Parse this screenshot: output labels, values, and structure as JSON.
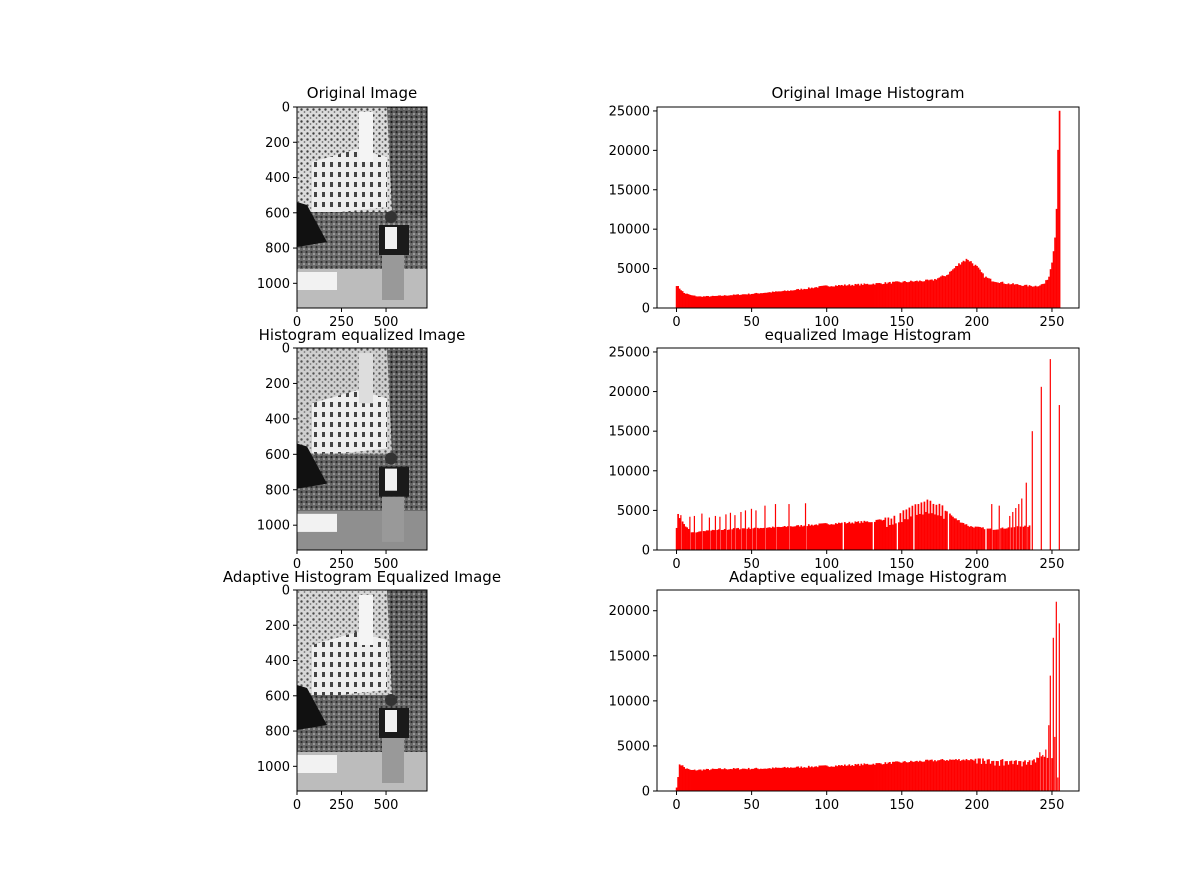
{
  "chart_data": [
    {
      "type": "image",
      "title": "Original Image",
      "variant": "original",
      "xticks": [
        0,
        250,
        500
      ],
      "yticks": [
        0,
        200,
        400,
        600,
        800,
        1000
      ],
      "xlim": [
        0,
        730
      ],
      "ylim": [
        1140,
        0
      ]
    },
    {
      "type": "bar",
      "title": "Original Image Histogram",
      "color": "#ff0000",
      "xlim": [
        -13,
        268
      ],
      "ylim": [
        0,
        25500
      ],
      "xticks": [
        0,
        50,
        100,
        150,
        200,
        250
      ],
      "yticks": [
        0,
        5000,
        10000,
        15000,
        20000,
        25000
      ],
      "profile": "original",
      "keypoints": [
        [
          0,
          2900
        ],
        [
          2,
          2500
        ],
        [
          5,
          1900
        ],
        [
          10,
          1600
        ],
        [
          15,
          1450
        ],
        [
          25,
          1500
        ],
        [
          50,
          1800
        ],
        [
          75,
          2200
        ],
        [
          100,
          2800
        ],
        [
          125,
          3000
        ],
        [
          150,
          3300
        ],
        [
          170,
          3500
        ],
        [
          180,
          4200
        ],
        [
          190,
          5900
        ],
        [
          194,
          6200
        ],
        [
          200,
          5200
        ],
        [
          205,
          4000
        ],
        [
          210,
          3500
        ],
        [
          220,
          3100
        ],
        [
          235,
          2800
        ],
        [
          240,
          2800
        ],
        [
          245,
          3100
        ],
        [
          248,
          4000
        ],
        [
          250,
          6000
        ],
        [
          252,
          9000
        ],
        [
          253,
          13000
        ],
        [
          254,
          20500
        ],
        [
          255,
          24200
        ],
        [
          256,
          18400
        ]
      ]
    },
    {
      "type": "image",
      "title": "Histogram equalized Image",
      "variant": "equalized",
      "xticks": [
        0,
        250,
        500
      ],
      "yticks": [
        0,
        200,
        400,
        600,
        800,
        1000
      ],
      "xlim": [
        0,
        730
      ],
      "ylim": [
        1140,
        0
      ]
    },
    {
      "type": "bar",
      "title": "equalized Image Histogram",
      "color": "#ff0000",
      "xlim": [
        -13,
        268
      ],
      "ylim": [
        0,
        25500
      ],
      "xticks": [
        0,
        50,
        100,
        150,
        200,
        250
      ],
      "yticks": [
        0,
        5000,
        10000,
        15000,
        20000,
        25000
      ],
      "profile": "equalized",
      "keypoints": [
        [
          0,
          2900
        ],
        [
          1,
          4400
        ],
        [
          3,
          3800
        ],
        [
          6,
          3000
        ],
        [
          10,
          2200
        ],
        [
          20,
          2400
        ],
        [
          40,
          2700
        ],
        [
          70,
          2900
        ],
        [
          100,
          3300
        ],
        [
          130,
          3600
        ],
        [
          145,
          4200
        ],
        [
          155,
          5400
        ],
        [
          165,
          6200
        ],
        [
          175,
          5800
        ],
        [
          185,
          4000
        ],
        [
          195,
          3000
        ],
        [
          210,
          2600
        ],
        [
          230,
          3000
        ]
      ],
      "spikes": [
        [
          3,
          4400
        ],
        [
          9,
          4200
        ],
        [
          12,
          4300
        ],
        [
          17,
          4600
        ],
        [
          22,
          4100
        ],
        [
          26,
          4300
        ],
        [
          29,
          4200
        ],
        [
          33,
          4500
        ],
        [
          36,
          4700
        ],
        [
          39,
          4400
        ],
        [
          43,
          4800
        ],
        [
          46,
          5000
        ],
        [
          50,
          5200
        ],
        [
          53,
          5000
        ],
        [
          59,
          5600
        ],
        [
          66,
          5800
        ],
        [
          75,
          5800
        ],
        [
          86,
          5900
        ],
        [
          210,
          5800
        ],
        [
          215,
          5600
        ],
        [
          222,
          4300
        ],
        [
          224,
          4800
        ],
        [
          226,
          5300
        ],
        [
          228,
          5800
        ],
        [
          230,
          6500
        ],
        [
          233,
          8500
        ],
        [
          237,
          15000
        ],
        [
          243,
          20600
        ],
        [
          249,
          24100
        ],
        [
          255,
          18300
        ]
      ],
      "gaps": [
        111,
        131,
        147,
        158,
        181,
        206
      ]
    },
    {
      "type": "image",
      "title": "Adaptive Histogram Equalized Image",
      "variant": "adaptive",
      "xticks": [
        0,
        250,
        500
      ],
      "yticks": [
        0,
        200,
        400,
        600,
        800,
        1000
      ],
      "xlim": [
        0,
        730
      ],
      "ylim": [
        1140,
        0
      ]
    },
    {
      "type": "bar",
      "title": "Adaptive equalized Image Histogram",
      "color": "#ff0000",
      "xlim": [
        -13,
        268
      ],
      "ylim": [
        0,
        22300
      ],
      "xticks": [
        0,
        50,
        100,
        150,
        200,
        250
      ],
      "yticks": [
        0,
        5000,
        10000,
        15000,
        20000
      ],
      "profile": "adaptive",
      "keypoints": [
        [
          0,
          400
        ],
        [
          1,
          1500
        ],
        [
          2,
          3000
        ],
        [
          4,
          2800
        ],
        [
          6,
          2500
        ],
        [
          10,
          2300
        ],
        [
          30,
          2450
        ],
        [
          60,
          2500
        ],
        [
          90,
          2700
        ],
        [
          120,
          2900
        ],
        [
          150,
          3200
        ],
        [
          180,
          3450
        ],
        [
          200,
          3500
        ],
        [
          220,
          3400
        ],
        [
          235,
          3300
        ],
        [
          240,
          3800
        ]
      ],
      "spikes": [
        [
          242,
          4300
        ],
        [
          244,
          4000
        ],
        [
          246,
          4600
        ],
        [
          248,
          7300
        ],
        [
          249,
          12800
        ],
        [
          251,
          17000
        ],
        [
          252,
          6000
        ],
        [
          253,
          21000
        ],
        [
          254,
          1500
        ],
        [
          255,
          18600
        ]
      ]
    }
  ]
}
